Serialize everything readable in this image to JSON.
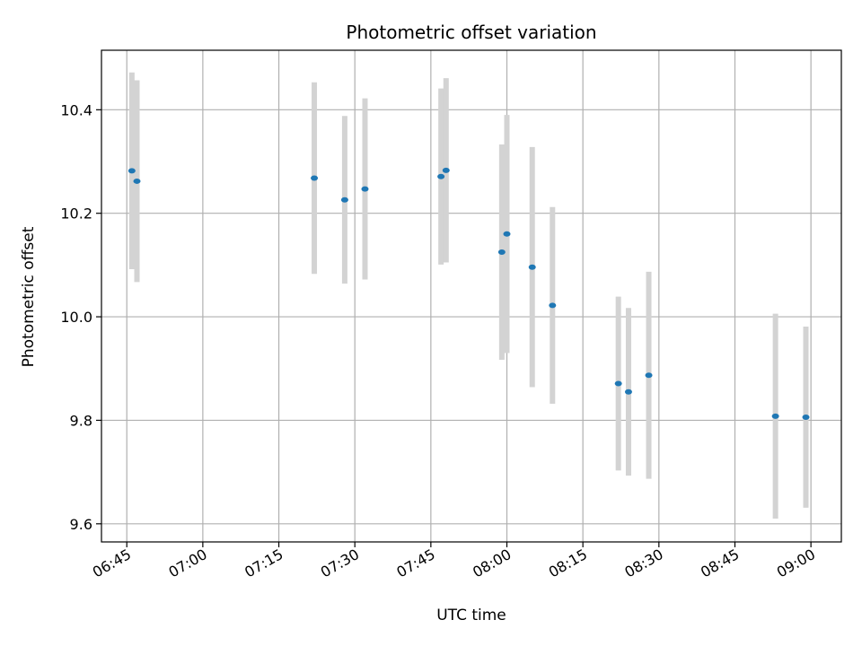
{
  "chart_data": {
    "type": "scatter",
    "title": "Photometric offset variation",
    "xlabel": "UTC time",
    "ylabel": "Photometric offset",
    "x_ticks": [
      "06:45",
      "07:00",
      "07:15",
      "07:30",
      "07:45",
      "08:00",
      "08:15",
      "08:30",
      "08:45",
      "09:00"
    ],
    "y_ticks": [
      "9.6",
      "9.8",
      "10.0",
      "10.2",
      "10.4"
    ],
    "xlim": [
      "06:40",
      "09:06"
    ],
    "ylim": [
      9.565,
      10.515
    ],
    "grid": true,
    "colors": {
      "marker": "#1f77b4",
      "errorbar": "#d3d3d3",
      "grid": "#b0b0b0"
    },
    "series": [
      {
        "points": [
          {
            "x": "06:46",
            "y": 10.282,
            "yerr": 0.19
          },
          {
            "x": "06:47",
            "y": 10.262,
            "yerr": 0.195
          },
          {
            "x": "07:22",
            "y": 10.268,
            "yerr": 0.185
          },
          {
            "x": "07:28",
            "y": 10.226,
            "yerr": 0.162
          },
          {
            "x": "07:32",
            "y": 10.247,
            "yerr": 0.175
          },
          {
            "x": "07:47",
            "y": 10.271,
            "yerr": 0.17
          },
          {
            "x": "07:48",
            "y": 10.283,
            "yerr": 0.178
          },
          {
            "x": "07:59",
            "y": 10.125,
            "yerr": 0.208
          },
          {
            "x": "08:00",
            "y": 10.16,
            "yerr": 0.23
          },
          {
            "x": "08:05",
            "y": 10.096,
            "yerr": 0.232
          },
          {
            "x": "08:09",
            "y": 10.022,
            "yerr": 0.19
          },
          {
            "x": "08:22",
            "y": 9.871,
            "yerr": 0.168
          },
          {
            "x": "08:24",
            "y": 9.855,
            "yerr": 0.162
          },
          {
            "x": "08:28",
            "y": 9.887,
            "yerr": 0.2
          },
          {
            "x": "08:53",
            "y": 9.808,
            "yerr": 0.198
          },
          {
            "x": "08:59",
            "y": 9.806,
            "yerr": 0.175
          }
        ]
      }
    ]
  }
}
